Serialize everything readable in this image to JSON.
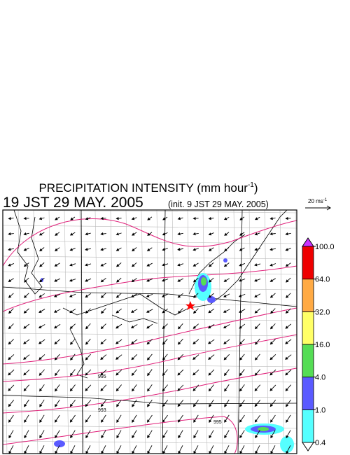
{
  "title": {
    "text": "PRECIPITATION INTENSITY (mm hour",
    "sup": "-1",
    "close": ")"
  },
  "valid_time": "19 JST 29 MAY. 2005",
  "init_time": "(init. 9 JST 29 MAY. 2005)",
  "reference_vector": {
    "text": "20 ms",
    "sup": "-1"
  },
  "colorbar": {
    "levels": [
      {
        "value": 0.4,
        "label": "0.4"
      },
      {
        "value": 1.0,
        "label": "1.0"
      },
      {
        "value": 4.0,
        "label": "4.0"
      },
      {
        "value": 16.0,
        "label": "16.0"
      },
      {
        "value": 32.0,
        "label": "32.0"
      },
      {
        "value": 64.0,
        "label": "64.0"
      },
      {
        "value": 100.0,
        "label": "100.0"
      }
    ],
    "colors": [
      "#55ffff",
      "#5a5aff",
      "#55dd55",
      "#ffff66",
      "#ffaa44",
      "#ee0000"
    ],
    "over_color": "#cc33ff",
    "under_color": "#ffffff"
  },
  "isobar_labels": [
    "995",
    "993",
    "995"
  ]
}
